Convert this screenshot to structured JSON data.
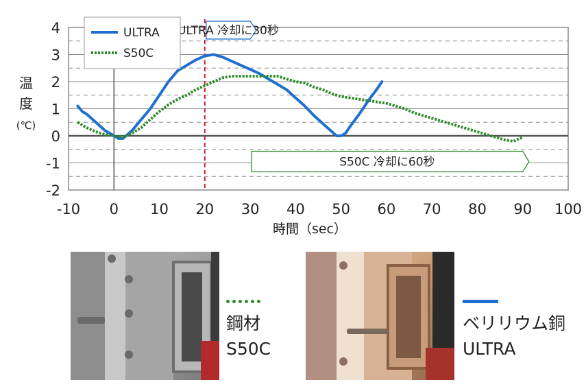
{
  "chart_data": {
    "type": "line",
    "ylabel": [
      "温",
      "度",
      "(℃)"
    ],
    "xlabel": "時間（sec）",
    "xlim": [
      -10,
      100
    ],
    "ylim": [
      -2,
      4
    ],
    "x_ticks": [
      -10,
      0,
      10,
      20,
      30,
      40,
      50,
      60,
      70,
      80,
      90,
      100
    ],
    "y_ticks": [
      -2,
      -1,
      0,
      1,
      2,
      3,
      4
    ],
    "grid": true,
    "legend": "top-left",
    "series": [
      {
        "name": "ULTRA",
        "color": "#1f6fd1",
        "style": "solid",
        "points": [
          [
            -8,
            1.1
          ],
          [
            -7,
            0.9
          ],
          [
            -6,
            0.8
          ],
          [
            -4,
            0.5
          ],
          [
            -2,
            0.2
          ],
          [
            0,
            0.0
          ],
          [
            1,
            -0.1
          ],
          [
            2,
            -0.1
          ],
          [
            4,
            0.2
          ],
          [
            6,
            0.6
          ],
          [
            8,
            1.0
          ],
          [
            10,
            1.5
          ],
          [
            12,
            2.0
          ],
          [
            14,
            2.4
          ],
          [
            16,
            2.6
          ],
          [
            18,
            2.8
          ],
          [
            20,
            2.95
          ],
          [
            22,
            3.0
          ],
          [
            24,
            2.9
          ],
          [
            26,
            2.75
          ],
          [
            28,
            2.6
          ],
          [
            30,
            2.45
          ],
          [
            32,
            2.3
          ],
          [
            34,
            2.1
          ],
          [
            36,
            1.9
          ],
          [
            38,
            1.7
          ],
          [
            40,
            1.4
          ],
          [
            42,
            1.1
          ],
          [
            44,
            0.75
          ],
          [
            46,
            0.45
          ],
          [
            48,
            0.15
          ],
          [
            49,
            0.0
          ],
          [
            50,
            0.0
          ],
          [
            51,
            0.1
          ],
          [
            52,
            0.35
          ],
          [
            54,
            0.8
          ],
          [
            56,
            1.3
          ],
          [
            58,
            1.75
          ],
          [
            59,
            2.0
          ]
        ]
      },
      {
        "name": "S50C",
        "color": "#2e8a2a",
        "style": "dotted",
        "points": [
          [
            -8,
            0.5
          ],
          [
            -6,
            0.3
          ],
          [
            -4,
            0.15
          ],
          [
            -2,
            0.05
          ],
          [
            0,
            0.0
          ],
          [
            2,
            -0.05
          ],
          [
            4,
            0.1
          ],
          [
            6,
            0.3
          ],
          [
            8,
            0.6
          ],
          [
            10,
            0.9
          ],
          [
            12,
            1.15
          ],
          [
            14,
            1.35
          ],
          [
            16,
            1.5
          ],
          [
            18,
            1.7
          ],
          [
            20,
            1.85
          ],
          [
            22,
            2.0
          ],
          [
            24,
            2.15
          ],
          [
            26,
            2.2
          ],
          [
            30,
            2.2
          ],
          [
            34,
            2.2
          ],
          [
            36,
            2.2
          ],
          [
            38,
            2.1
          ],
          [
            40,
            2.0
          ],
          [
            42,
            1.95
          ],
          [
            44,
            1.8
          ],
          [
            46,
            1.7
          ],
          [
            48,
            1.55
          ],
          [
            50,
            1.45
          ],
          [
            52,
            1.4
          ],
          [
            54,
            1.35
          ],
          [
            56,
            1.3
          ],
          [
            58,
            1.25
          ],
          [
            60,
            1.2
          ],
          [
            62,
            1.1
          ],
          [
            64,
            1.0
          ],
          [
            66,
            0.85
          ],
          [
            68,
            0.75
          ],
          [
            70,
            0.65
          ],
          [
            72,
            0.55
          ],
          [
            74,
            0.45
          ],
          [
            76,
            0.35
          ],
          [
            78,
            0.25
          ],
          [
            80,
            0.15
          ],
          [
            82,
            0.05
          ],
          [
            84,
            -0.05
          ],
          [
            86,
            -0.15
          ],
          [
            88,
            -0.2
          ],
          [
            90,
            -0.05
          ]
        ]
      }
    ],
    "annotations": [
      {
        "text": "ULTRA 冷却に30秒",
        "x_from": 20,
        "x_to": 30,
        "y": 3.9,
        "color": "#1f6fd1"
      },
      {
        "text": "S50C 冷却に60秒",
        "x_from": 20,
        "x_to": 90,
        "y": -0.95,
        "color": "#2e8a2a"
      }
    ],
    "marker_x": 20,
    "marker_color": "#d11f2a"
  },
  "photos": {
    "s50c": {
      "line_color": "#2e8a2a",
      "label_line1": "鋼材",
      "label_line2": "S50C"
    },
    "ultra": {
      "line_color": "#1f6fd1",
      "label_line1": "ベリリウム銅",
      "label_line2": "ULTRA"
    }
  }
}
